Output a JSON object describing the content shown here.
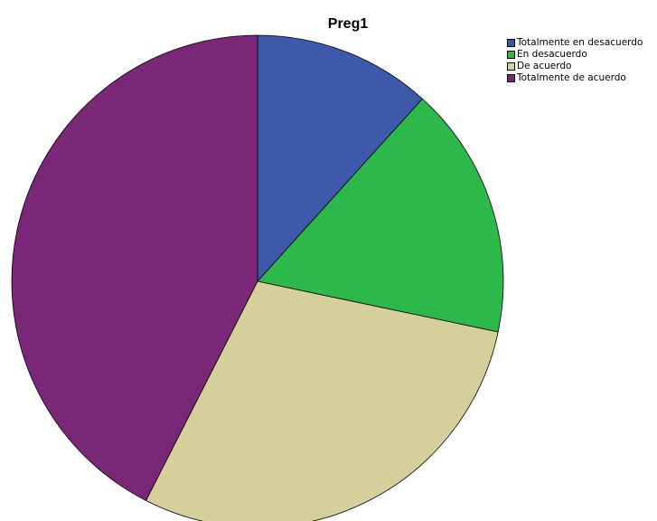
{
  "chart_data": {
    "type": "pie",
    "title": "Preg1",
    "categories": [
      "Totalmente en desacuerdo",
      "En desacuerdo",
      "De acuerdo",
      "Totalmente de acuerdo"
    ],
    "values": [
      11.7,
      16.6,
      29.2,
      42.5
    ],
    "colors": [
      "#3f59aa",
      "#2db84b",
      "#d5cf9b",
      "#7b2778"
    ],
    "start_angle": "12 o'clock",
    "direction": "clockwise",
    "legend_position": "top-right",
    "slice_labels": "none"
  }
}
